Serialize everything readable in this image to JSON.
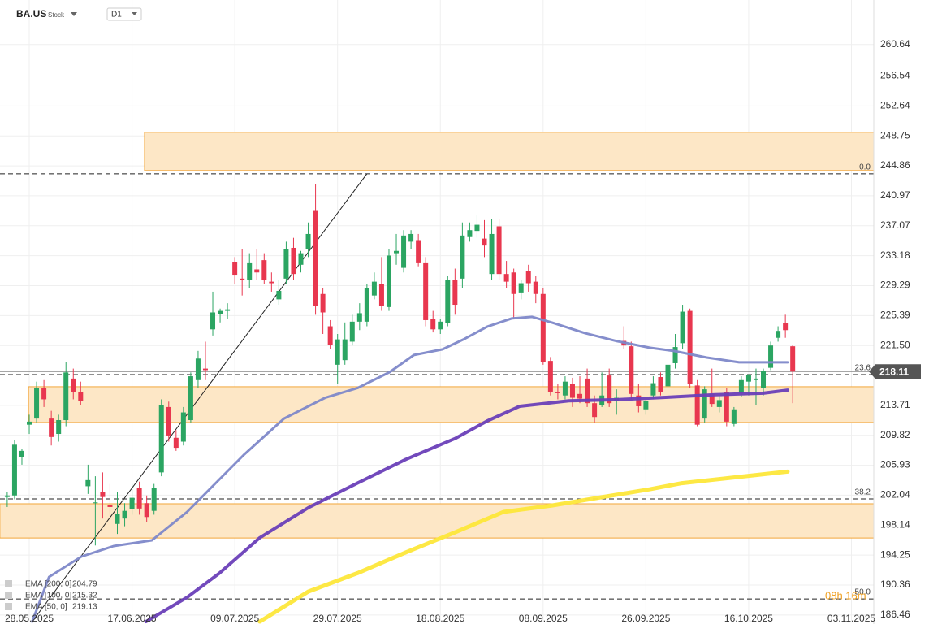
{
  "header": {
    "symbol": "BA.US",
    "kind": "Stock",
    "timeframe": "D1"
  },
  "chart_data": {
    "type": "candlestick",
    "grid": true,
    "up_color": "#2ba562",
    "down_color": "#e8374f",
    "ylim": [
      185.6,
      266.42
    ],
    "yticks": [
      260.64,
      256.54,
      252.64,
      248.75,
      244.86,
      240.97,
      237.07,
      233.18,
      229.29,
      225.39,
      {
        "value": 221.5,
        "label": "221.50"
      },
      213.71,
      209.82,
      205.93,
      202.04,
      198.14,
      194.25,
      190.36,
      186.46
    ],
    "xticks": [
      {
        "value": 3,
        "label": "28.05.2025"
      },
      {
        "value": 17,
        "label": "17.06.2025"
      },
      {
        "value": 31,
        "label": "09.07.2025"
      },
      {
        "value": 45,
        "label": "29.07.2025"
      },
      {
        "value": 59,
        "label": "18.08.2025"
      },
      {
        "value": 73,
        "label": "08.09.2025"
      },
      {
        "value": 87,
        "label": "26.09.2025"
      },
      {
        "value": 101,
        "label": "16.10.2025"
      },
      {
        "value": 115,
        "label": "03.11.2025"
      }
    ],
    "candles": [
      {
        "open": 201.8,
        "high": 202.4,
        "low": 200.5,
        "close": 202.0
      },
      {
        "open": 202.0,
        "high": 209.2,
        "low": 201.5,
        "close": 208.6
      },
      {
        "open": 207.0,
        "high": 208.0,
        "low": 206.0,
        "close": 207.8
      },
      {
        "open": 211.2,
        "high": 212.5,
        "low": 210.0,
        "close": 211.6
      },
      {
        "open": 212.0,
        "high": 216.8,
        "low": 211.5,
        "close": 216.0
      },
      {
        "open": 216.0,
        "high": 217.0,
        "low": 213.5,
        "close": 214.5
      },
      {
        "open": 212.0,
        "high": 213.0,
        "low": 208.5,
        "close": 209.6
      },
      {
        "open": 210.0,
        "high": 212.5,
        "low": 209.0,
        "close": 211.8
      },
      {
        "open": 211.8,
        "high": 219.3,
        "low": 211.0,
        "close": 218.0
      },
      {
        "open": 217.2,
        "high": 218.5,
        "low": 214.5,
        "close": 215.5
      },
      {
        "open": 215.5,
        "high": 216.8,
        "low": 213.8,
        "close": 214.3
      },
      {
        "open": 203.2,
        "high": 206.0,
        "low": 202.2,
        "close": 204.0
      },
      {
        "open": 201.0,
        "high": 204.5,
        "low": 195.5,
        "close": 201.1
      },
      {
        "open": 202.5,
        "high": 205.0,
        "low": 199.0,
        "close": 201.8
      },
      {
        "open": 200.8,
        "high": 203.5,
        "low": 199.5,
        "close": 200.5
      },
      {
        "open": 198.3,
        "high": 202.5,
        "low": 197.0,
        "close": 199.6
      },
      {
        "open": 199.0,
        "high": 201.0,
        "low": 198.0,
        "close": 200.0
      },
      {
        "open": 200.2,
        "high": 203.5,
        "low": 199.5,
        "close": 201.7
      },
      {
        "open": 203.0,
        "high": 203.8,
        "low": 199.5,
        "close": 200.3
      },
      {
        "open": 201.0,
        "high": 202.0,
        "low": 198.5,
        "close": 199.2
      },
      {
        "open": 200.0,
        "high": 203.5,
        "low": 199.5,
        "close": 203.0
      },
      {
        "open": 205.0,
        "high": 214.5,
        "low": 204.5,
        "close": 213.8
      },
      {
        "open": 213.5,
        "high": 214.2,
        "low": 209.0,
        "close": 209.8
      },
      {
        "open": 209.5,
        "high": 210.5,
        "low": 207.8,
        "close": 208.2
      },
      {
        "open": 209.0,
        "high": 213.5,
        "low": 208.5,
        "close": 212.8
      },
      {
        "open": 211.8,
        "high": 218.0,
        "low": 211.5,
        "close": 217.5
      },
      {
        "open": 217.0,
        "high": 220.8,
        "low": 216.0,
        "close": 219.8
      },
      {
        "open": 218.5,
        "high": 222.0,
        "low": 217.0,
        "close": 218.3
      },
      {
        "open": 223.6,
        "high": 228.5,
        "low": 222.8,
        "close": 225.8
      },
      {
        "open": 225.6,
        "high": 226.3,
        "low": 224.5,
        "close": 226.0
      },
      {
        "open": 226.0,
        "high": 227.0,
        "low": 225.0,
        "close": 226.2
      },
      {
        "open": 232.4,
        "high": 233.0,
        "low": 229.5,
        "close": 230.6
      },
      {
        "open": 230.2,
        "high": 234.0,
        "low": 228.0,
        "close": 230.0
      },
      {
        "open": 230.0,
        "high": 233.5,
        "low": 229.0,
        "close": 232.2
      },
      {
        "open": 231.4,
        "high": 234.0,
        "low": 230.0,
        "close": 231.0
      },
      {
        "open": 232.6,
        "high": 233.5,
        "low": 229.5,
        "close": 230.0
      },
      {
        "open": 229.8,
        "high": 231.0,
        "low": 228.5,
        "close": 229.6
      },
      {
        "open": 227.5,
        "high": 230.0,
        "low": 226.8,
        "close": 228.6
      },
      {
        "open": 230.2,
        "high": 235.0,
        "low": 229.5,
        "close": 234.0
      },
      {
        "open": 234.2,
        "high": 235.5,
        "low": 230.0,
        "close": 230.8
      },
      {
        "open": 232.0,
        "high": 233.8,
        "low": 231.0,
        "close": 233.5
      },
      {
        "open": 234.0,
        "high": 237.5,
        "low": 233.0,
        "close": 236.0
      },
      {
        "open": 239.0,
        "high": 242.5,
        "low": 225.5,
        "close": 226.6
      },
      {
        "open": 228.2,
        "high": 229.0,
        "low": 223.0,
        "close": 225.8
      },
      {
        "open": 224.0,
        "high": 224.8,
        "low": 221.0,
        "close": 221.6
      },
      {
        "open": 219.0,
        "high": 223.0,
        "low": 216.5,
        "close": 222.3
      },
      {
        "open": 219.6,
        "high": 224.5,
        "low": 219.0,
        "close": 222.3
      },
      {
        "open": 222.0,
        "high": 225.5,
        "low": 221.5,
        "close": 224.6
      },
      {
        "open": 224.6,
        "high": 227.0,
        "low": 223.5,
        "close": 225.7
      },
      {
        "open": 224.6,
        "high": 229.5,
        "low": 224.0,
        "close": 229.0
      },
      {
        "open": 228.0,
        "high": 231.0,
        "low": 227.5,
        "close": 229.8
      },
      {
        "open": 229.5,
        "high": 233.0,
        "low": 226.0,
        "close": 226.6
      },
      {
        "open": 226.5,
        "high": 234.0,
        "low": 226.0,
        "close": 233.2
      },
      {
        "open": 233.5,
        "high": 236.0,
        "low": 232.0,
        "close": 233.8
      },
      {
        "open": 231.6,
        "high": 236.5,
        "low": 231.0,
        "close": 235.8
      },
      {
        "open": 235.0,
        "high": 236.5,
        "low": 234.0,
        "close": 236.0
      },
      {
        "open": 235.2,
        "high": 236.0,
        "low": 231.8,
        "close": 232.2
      },
      {
        "open": 232.2,
        "high": 233.0,
        "low": 224.0,
        "close": 224.8
      },
      {
        "open": 225.0,
        "high": 226.0,
        "low": 223.2,
        "close": 223.6
      },
      {
        "open": 223.6,
        "high": 225.0,
        "low": 223.0,
        "close": 224.6
      },
      {
        "open": 224.4,
        "high": 230.5,
        "low": 224.0,
        "close": 230.0
      },
      {
        "open": 230.0,
        "high": 231.5,
        "low": 225.5,
        "close": 226.8
      },
      {
        "open": 230.2,
        "high": 237.5,
        "low": 229.0,
        "close": 235.8
      },
      {
        "open": 235.6,
        "high": 237.5,
        "low": 235.0,
        "close": 236.5
      },
      {
        "open": 236.4,
        "high": 238.5,
        "low": 235.5,
        "close": 237.2
      },
      {
        "open": 235.4,
        "high": 237.8,
        "low": 233.0,
        "close": 234.5
      },
      {
        "open": 230.8,
        "high": 238.0,
        "low": 230.0,
        "close": 236.0
      },
      {
        "open": 237.0,
        "high": 238.0,
        "low": 230.0,
        "close": 230.8
      },
      {
        "open": 230.8,
        "high": 232.5,
        "low": 229.0,
        "close": 229.8
      },
      {
        "open": 231.0,
        "high": 231.5,
        "low": 225.0,
        "close": 228.2
      },
      {
        "open": 228.4,
        "high": 230.0,
        "low": 227.5,
        "close": 229.6
      },
      {
        "open": 231.2,
        "high": 232.0,
        "low": 228.5,
        "close": 229.6
      },
      {
        "open": 229.8,
        "high": 230.5,
        "low": 227.0,
        "close": 228.2
      },
      {
        "open": 228.2,
        "high": 229.0,
        "low": 219.0,
        "close": 219.4
      },
      {
        "open": 219.5,
        "high": 220.0,
        "low": 215.0,
        "close": 215.5
      },
      {
        "open": 215.4,
        "high": 216.5,
        "low": 214.5,
        "close": 215.3
      },
      {
        "open": 215.0,
        "high": 217.5,
        "low": 214.5,
        "close": 216.8
      },
      {
        "open": 216.5,
        "high": 217.3,
        "low": 213.5,
        "close": 214.7
      },
      {
        "open": 215.2,
        "high": 217.5,
        "low": 214.0,
        "close": 214.6
      },
      {
        "open": 217.2,
        "high": 218.5,
        "low": 213.5,
        "close": 214.0
      },
      {
        "open": 214.0,
        "high": 215.0,
        "low": 211.5,
        "close": 212.2
      },
      {
        "open": 213.8,
        "high": 218.0,
        "low": 213.5,
        "close": 215.0
      },
      {
        "open": 217.6,
        "high": 218.5,
        "low": 213.5,
        "close": 214.0
      },
      {
        "open": 214.3,
        "high": 215.8,
        "low": 212.5,
        "close": 214.7
      },
      {
        "open": 222.1,
        "high": 224.0,
        "low": 221.0,
        "close": 221.5
      },
      {
        "open": 221.4,
        "high": 222.0,
        "low": 214.5,
        "close": 215.2
      },
      {
        "open": 215.0,
        "high": 216.5,
        "low": 212.8,
        "close": 213.6
      },
      {
        "open": 213.2,
        "high": 214.8,
        "low": 212.5,
        "close": 214.3
      },
      {
        "open": 215.0,
        "high": 217.5,
        "low": 214.5,
        "close": 216.6
      },
      {
        "open": 217.4,
        "high": 218.0,
        "low": 215.0,
        "close": 215.5
      },
      {
        "open": 216.2,
        "high": 221.0,
        "low": 216.0,
        "close": 219.0
      },
      {
        "open": 219.2,
        "high": 223.0,
        "low": 218.5,
        "close": 221.3
      },
      {
        "open": 221.8,
        "high": 226.8,
        "low": 221.0,
        "close": 225.9
      },
      {
        "open": 226.0,
        "high": 226.3,
        "low": 216.0,
        "close": 216.5
      },
      {
        "open": 216.3,
        "high": 217.0,
        "low": 211.0,
        "close": 211.2
      },
      {
        "open": 212.0,
        "high": 216.2,
        "low": 211.5,
        "close": 215.8
      },
      {
        "open": 215.2,
        "high": 218.5,
        "low": 213.5,
        "close": 213.9
      },
      {
        "open": 213.5,
        "high": 215.0,
        "low": 212.8,
        "close": 214.4
      },
      {
        "open": 215.4,
        "high": 216.0,
        "low": 211.0,
        "close": 211.6
      },
      {
        "open": 211.3,
        "high": 213.5,
        "low": 211.0,
        "close": 213.2
      },
      {
        "open": 215.3,
        "high": 217.5,
        "low": 214.8,
        "close": 217.0
      },
      {
        "open": 216.8,
        "high": 217.8,
        "low": 215.0,
        "close": 217.7
      },
      {
        "open": 217.0,
        "high": 218.5,
        "low": 213.8,
        "close": 217.2
      },
      {
        "open": 216.0,
        "high": 218.5,
        "low": 215.0,
        "close": 218.2
      },
      {
        "open": 218.6,
        "high": 222.0,
        "low": 218.3,
        "close": 221.5
      },
      {
        "open": 222.5,
        "high": 224.0,
        "low": 222.0,
        "close": 223.4
      },
      {
        "open": 224.4,
        "high": 225.5,
        "low": 222.5,
        "close": 223.5
      },
      {
        "open": 221.4,
        "high": 221.6,
        "low": 214.0,
        "close": 218.11
      }
    ],
    "series": [
      {
        "name": "EMA [200, 0]",
        "last_value": 204.79,
        "color": "#fde73a",
        "width": 5,
        "x": [
          34.4,
          41.0,
          47.7,
          54.3,
          61.0,
          67.6,
          74.2,
          80.9,
          87.5,
          91.9,
          98.6,
          106.3
        ],
        "values": [
          185.6,
          189.5,
          191.9,
          194.6,
          197.2,
          199.86,
          200.7,
          201.76,
          202.8,
          203.6,
          204.3,
          205.1
        ]
      },
      {
        "name": "EMA [100, 0]",
        "last_value": 215.32,
        "color": "#6a3fb8",
        "width": 4,
        "x": [
          18.9,
          24.5,
          28.9,
          34.4,
          41.0,
          47.7,
          54.3,
          61.0,
          65.4,
          69.8,
          76.5,
          83.1,
          89.7,
          96.4,
          103.0,
          106.3
        ],
        "values": [
          185.6,
          188.76,
          191.9,
          196.5,
          200.4,
          203.6,
          206.7,
          209.4,
          211.7,
          213.6,
          214.3,
          214.45,
          214.76,
          215.1,
          215.3,
          215.7
        ]
      },
      {
        "name": "EMA [50, 0]",
        "last_value": 219.13,
        "color": "#7e88c9",
        "width": 3,
        "x": [
          3.4,
          5.7,
          10.1,
          14.5,
          19.7,
          24.5,
          27.8,
          32.2,
          37.7,
          43.3,
          47.7,
          52.1,
          55.4,
          59.3,
          62.1,
          65.4,
          68.7,
          71.5,
          74.2,
          78.7,
          83.1,
          87.5,
          90.8,
          95.3,
          99.7,
          103.5,
          106.3
        ],
        "values": [
          185.59,
          191.41,
          194.05,
          195.42,
          196.16,
          199.86,
          203.03,
          207.26,
          212.0,
          214.69,
          215.96,
          218.04,
          220.26,
          221.0,
          222.27,
          223.96,
          225.02,
          225.23,
          224.49,
          223.11,
          222.06,
          221.21,
          220.79,
          219.94,
          219.31,
          219.31,
          219.31
        ]
      }
    ],
    "zones": [
      {
        "x_start": 18.7,
        "top": 249.22,
        "bottom": 244.25
      },
      {
        "x_start": 2.9,
        "top": 216.14,
        "bottom": 211.49
      },
      {
        "x_start": -1.0,
        "top": 200.92,
        "bottom": 196.47
      }
    ],
    "levels": [
      {
        "label": "0.0",
        "value": 243.83
      },
      {
        "label": "23.6",
        "value": 217.72
      },
      {
        "label": "38.2",
        "value": 201.55
      },
      {
        "label": "50.0",
        "value": 188.55
      }
    ],
    "trendline": {
      "x": [
        3.4,
        49.0
      ],
      "values": [
        185.6,
        243.83
      ]
    },
    "last_price": 218.11,
    "countdown": "08h 16m"
  }
}
